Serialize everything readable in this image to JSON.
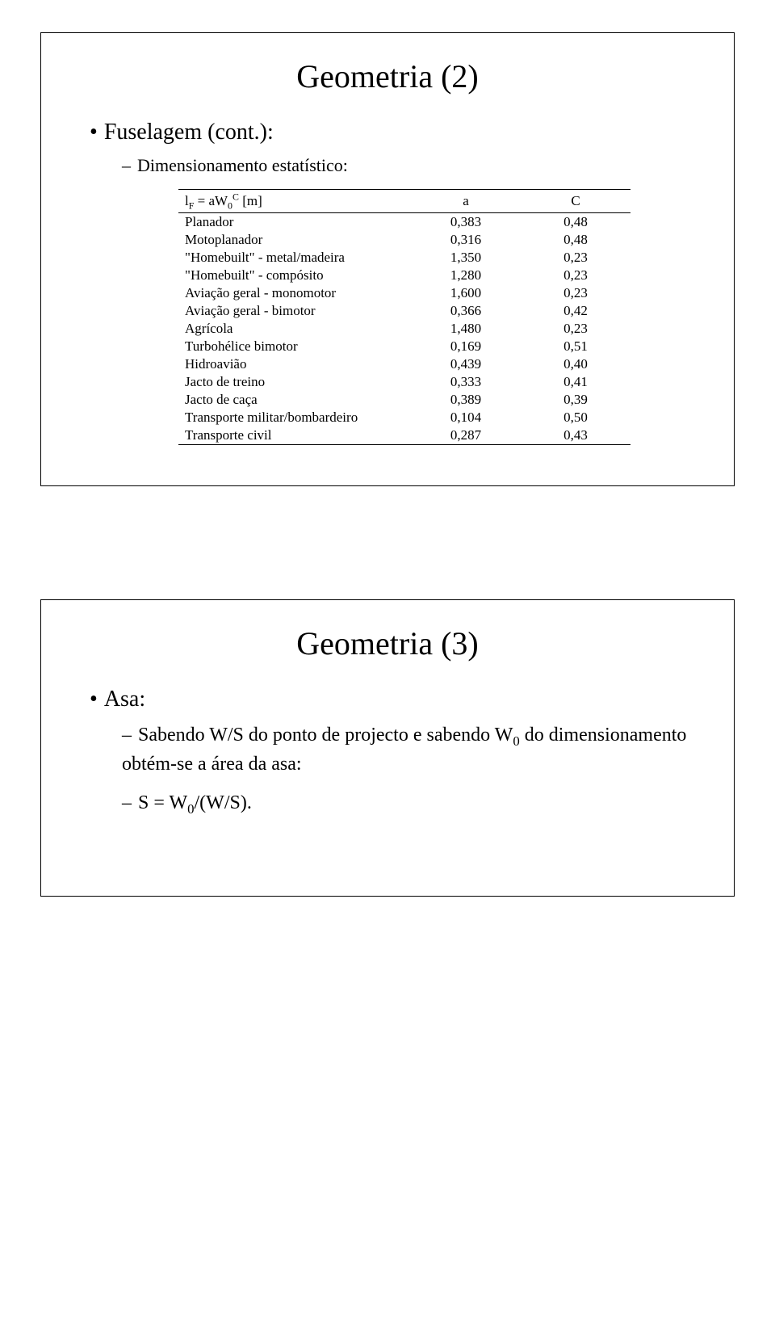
{
  "slide1": {
    "title": "Geometria (2)",
    "bullet1": "Fuselagem (cont.):",
    "bullet2": "Dimensionamento estatístico:",
    "table": {
      "header": {
        "name": "l",
        "sub": "F",
        "eq": " = aW",
        "sub2": "0",
        "sup": "C",
        "unit": " [m]",
        "a": "a",
        "c": "C"
      },
      "rows": [
        {
          "name": "Planador",
          "a": "0,383",
          "c": "0,48"
        },
        {
          "name": "Motoplanador",
          "a": "0,316",
          "c": "0,48"
        },
        {
          "name": "\"Homebuilt\" - metal/madeira",
          "a": "1,350",
          "c": "0,23"
        },
        {
          "name": "\"Homebuilt\" - compósito",
          "a": "1,280",
          "c": "0,23"
        },
        {
          "name": "Aviação geral - monomotor",
          "a": "1,600",
          "c": "0,23"
        },
        {
          "name": "Aviação geral - bimotor",
          "a": "0,366",
          "c": "0,42"
        },
        {
          "name": "Agrícola",
          "a": "1,480",
          "c": "0,23"
        },
        {
          "name": "Turbohélice bimotor",
          "a": "0,169",
          "c": "0,51"
        },
        {
          "name": "Hidroavião",
          "a": "0,439",
          "c": "0,40"
        },
        {
          "name": "Jacto de treino",
          "a": "0,333",
          "c": "0,41"
        },
        {
          "name": "Jacto de caça",
          "a": "0,389",
          "c": "0,39"
        },
        {
          "name": "Transporte militar/bombardeiro",
          "a": "0,104",
          "c": "0,50"
        },
        {
          "name": "Transporte civil",
          "a": "0,287",
          "c": "0,43"
        }
      ]
    }
  },
  "slide2": {
    "title": "Geometria (3)",
    "bullet1": "Asa:",
    "bullet2a": "Sabendo W/S do ponto de projecto e sabendo W",
    "bullet2a_sub": "0",
    "bullet2a_tail": " do dimensionamento obtém-se a área da asa:",
    "bullet2b": "S = W",
    "bullet2b_sub": "0",
    "bullet2b_tail": "/(W/S)."
  }
}
